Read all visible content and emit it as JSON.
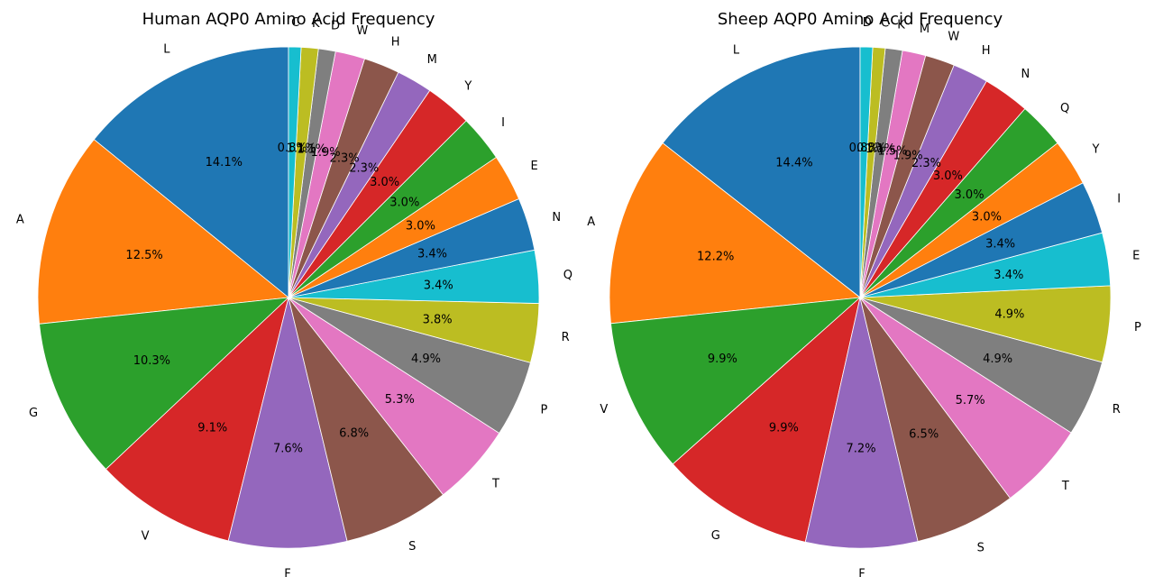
{
  "chart_data": [
    {
      "type": "pie",
      "title": "Human AQP0 Amino Acid Frequency",
      "labels": [
        "L",
        "A",
        "G",
        "V",
        "F",
        "S",
        "T",
        "P",
        "R",
        "Q",
        "N",
        "E",
        "I",
        "Y",
        "M",
        "H",
        "W",
        "D",
        "K",
        "C"
      ],
      "values": [
        14.1,
        12.5,
        10.3,
        9.1,
        7.6,
        6.8,
        5.3,
        4.9,
        3.8,
        3.4,
        3.4,
        3.0,
        3.0,
        3.0,
        2.3,
        2.3,
        1.9,
        1.1,
        1.1,
        0.8
      ],
      "value_labels": [
        "14.1%",
        "12.5%",
        "10.3%",
        "9.1%",
        "7.6%",
        "6.8%",
        "5.3%",
        "4.9%",
        "3.8%",
        "3.4%",
        "3.4%",
        "3.0%",
        "3.0%",
        "3.0%",
        "2.3%",
        "2.3%",
        "1.9%",
        "1.1%",
        "1.1%",
        "0.8%"
      ],
      "start_angle_deg": 90,
      "direction": "counterclockwise"
    },
    {
      "type": "pie",
      "title": "Sheep AQP0 Amino Acid Frequency",
      "labels": [
        "L",
        "A",
        "V",
        "G",
        "F",
        "S",
        "T",
        "R",
        "P",
        "E",
        "I",
        "Y",
        "Q",
        "N",
        "H",
        "W",
        "M",
        "K",
        "C",
        "D"
      ],
      "values": [
        14.4,
        12.2,
        9.9,
        9.9,
        7.2,
        6.5,
        5.7,
        4.9,
        4.9,
        3.4,
        3.4,
        3.0,
        3.0,
        3.0,
        2.3,
        1.9,
        1.5,
        1.1,
        0.8,
        0.8
      ],
      "value_labels": [
        "14.4%",
        "12.2%",
        "9.9%",
        "9.9%",
        "7.2%",
        "6.5%",
        "5.7%",
        "4.9%",
        "4.9%",
        "3.4%",
        "3.4%",
        "3.0%",
        "3.0%",
        "3.0%",
        "2.3%",
        "1.9%",
        "1.5%",
        "1.1%",
        "0.8%",
        "0.8%"
      ],
      "start_angle_deg": 90,
      "direction": "counterclockwise"
    }
  ],
  "palette": [
    "#1f77b4",
    "#ff7f0e",
    "#2ca02c",
    "#d62728",
    "#9467bd",
    "#8c564b",
    "#e377c2",
    "#7f7f7f",
    "#bcbd22",
    "#17becf"
  ]
}
